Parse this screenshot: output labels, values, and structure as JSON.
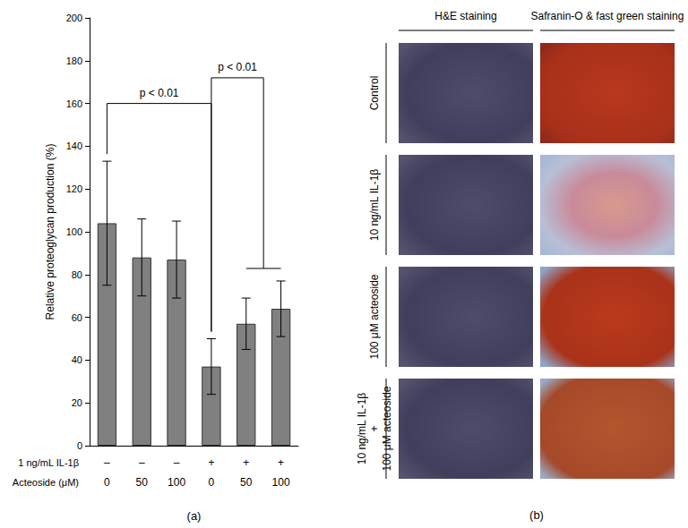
{
  "chart_data": {
    "type": "bar",
    "y_label": "Relative proteoglycan production (%)",
    "category_rows": [
      {
        "label": "1 ng/mL IL-1β",
        "values": [
          "–",
          "–",
          "–",
          "+",
          "+",
          "+"
        ]
      },
      {
        "label": "Acteoside (μM)",
        "values": [
          0,
          50,
          100,
          0,
          50,
          100
        ]
      }
    ],
    "values": [
      104,
      88,
      87,
      37,
      57,
      64
    ],
    "errors": [
      29,
      18,
      18,
      13,
      12,
      13
    ],
    "color": "#808080",
    "ylim": [
      0,
      200
    ],
    "yticks": [
      0,
      20,
      40,
      60,
      80,
      100,
      120,
      140,
      160,
      180,
      200
    ],
    "grid": false,
    "annotations": [
      {
        "text": "p < 0.01",
        "from": 0,
        "to": [
          3
        ],
        "y": 160
      },
      {
        "text": "p < 0.01",
        "from": 3,
        "to": [
          4,
          5
        ],
        "y": 172
      }
    ],
    "panel_label": "(a)"
  },
  "panel_b": {
    "panel_label": "(b)",
    "columns": [
      "H&E staining",
      "Safranin-O & fast green staining"
    ],
    "rows": [
      [
        "Control"
      ],
      [
        "10 ng/mL IL-1β"
      ],
      [
        "100 μM acteoside"
      ],
      [
        "10 ng/mL IL-1β",
        "+",
        "100 μM acteoside"
      ]
    ]
  }
}
